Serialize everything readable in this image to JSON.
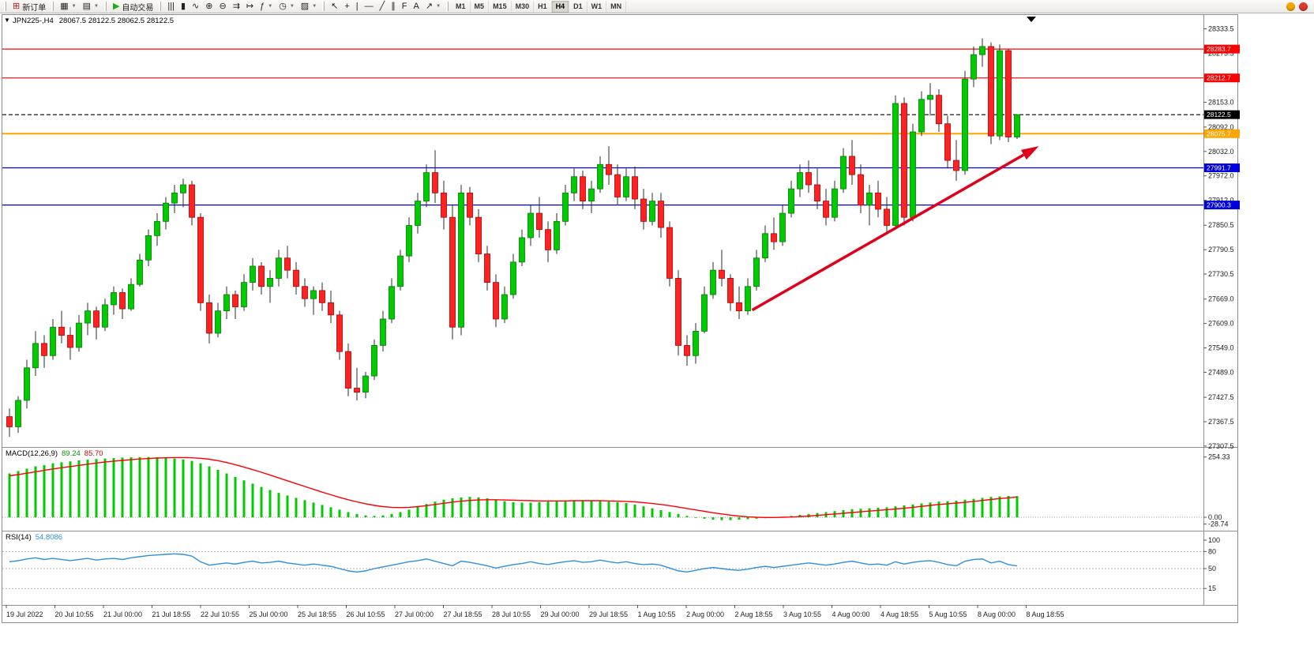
{
  "toolbar": {
    "groups": [
      {
        "items": [
          {
            "name": "new-order-button",
            "glyph": "⊞",
            "glyph_color": "#b01e1e",
            "label": "新订单"
          }
        ]
      },
      {
        "items": [
          {
            "name": "new-chart-button",
            "glyph": "▦",
            "caret": true
          },
          {
            "name": "profiles-button",
            "glyph": "▤",
            "caret": true
          }
        ]
      },
      {
        "items": [
          {
            "name": "autotrade-button",
            "glyph": "▶",
            "glyph_color": "#1faa1f",
            "label": "自动交易"
          }
        ]
      },
      {
        "items": [
          {
            "name": "bars-chart-button",
            "glyph": "|||"
          },
          {
            "name": "candlestick-chart-button",
            "glyph": "▮"
          },
          {
            "name": "line-chart-button",
            "glyph": "∿"
          },
          {
            "name": "zoom-in-button",
            "glyph": "⊕"
          },
          {
            "name": "zoom-out-button",
            "glyph": "⊖"
          },
          {
            "name": "auto-scroll-button",
            "glyph": "⇉"
          },
          {
            "name": "chart-shift-button",
            "glyph": "↦"
          },
          {
            "name": "indicators-button",
            "glyph": "ƒ",
            "caret": true
          },
          {
            "name": "periods-button",
            "glyph": "◷",
            "caret": true
          },
          {
            "name": "templates-button",
            "glyph": "▨",
            "caret": true
          }
        ]
      },
      {
        "items": [
          {
            "name": "cursor-tool-button",
            "glyph": "↖"
          },
          {
            "name": "crosshair-tool-button",
            "glyph": "+"
          },
          {
            "name": "vertical-line-tool-button",
            "glyph": "|"
          },
          {
            "name": "horizontal-line-tool-button",
            "glyph": "—"
          },
          {
            "name": "trendline-tool-button",
            "glyph": "╱"
          },
          {
            "name": "channel-tool-button",
            "glyph": "∥"
          },
          {
            "name": "fibonacci-tool-button",
            "glyph": "F"
          },
          {
            "name": "text-tool-button",
            "glyph": "A"
          },
          {
            "name": "arrows-tool-button",
            "glyph": "↗",
            "caret": true
          }
        ]
      }
    ],
    "timeframes": [
      "M1",
      "M5",
      "M15",
      "M30",
      "H1",
      "H4",
      "D1",
      "W1",
      "MN"
    ],
    "active_timeframe": "H4",
    "right_icons": [
      {
        "name": "community-icon",
        "color": "#f7a600"
      },
      {
        "name": "alerts-icon",
        "color": "#e0392e"
      }
    ]
  },
  "chart": {
    "one_click_glyph": "▼",
    "title": "JPN225-,H4",
    "ohlc_text": "28067.5 28122.5 28062.5 28122.5"
  },
  "chart_data": {
    "type": "candlestick",
    "symbol": "JPN225-",
    "period": "H4",
    "current_bar": {
      "open": 28067.5,
      "high": 28122.5,
      "low": 28062.5,
      "close": 28122.5
    },
    "up_color": "#00cb00",
    "down_color": "#ff2222",
    "y_axis_ticks": [
      "28333.5",
      "28273.5",
      "28153.0",
      "28092.0",
      "28032.0",
      "27972.0",
      "27912.0",
      "27850.5",
      "27790.5",
      "27730.5",
      "27669.0",
      "27609.0",
      "27549.0",
      "27489.0",
      "27427.5",
      "27367.5",
      "27307.5"
    ],
    "levels": [
      {
        "price": 28283.7,
        "label": "28283.7",
        "color": "#ff0000",
        "style": "solid",
        "role": "resistance"
      },
      {
        "price": 28212.7,
        "label": "28212.7",
        "color": "#ff0000",
        "style": "solid",
        "role": "resistance"
      },
      {
        "price": 28122.5,
        "label": "28122.5",
        "color": "#000000",
        "style": "dash",
        "role": "current-price"
      },
      {
        "price": 28075.7,
        "label": "28075.7",
        "color": "#ffa500",
        "style": "solid",
        "role": "pivot"
      },
      {
        "price": 27991.7,
        "label": "27991.7",
        "color": "#0000dd",
        "style": "solid",
        "role": "support"
      },
      {
        "price": 27900.3,
        "label": "27900.3",
        "color": "#0000dd",
        "style": "solid",
        "role": "support"
      }
    ],
    "x_labels": [
      "19 Jul 2022",
      "20 Jul 10:55",
      "21 Jul 00:00",
      "21 Jul 18:55",
      "22 Jul 10:55",
      "25 Jul 00:00",
      "25 Jul 18:55",
      "26 Jul 10:55",
      "27 Jul 00:00",
      "27 Jul 18:55",
      "28 Jul 10:55",
      "29 Jul 00:00",
      "29 Jul 18:55",
      "1 Aug 10:55",
      "2 Aug 00:00",
      "2 Aug 18:55",
      "3 Aug 10:55",
      "4 Aug 00:00",
      "4 Aug 18:55",
      "5 Aug 10:55",
      "8 Aug 00:00",
      "8 Aug 18:55"
    ],
    "candles": [
      [
        27380,
        27400,
        27330,
        27355
      ],
      [
        27355,
        27430,
        27340,
        27420
      ],
      [
        27420,
        27520,
        27400,
        27500
      ],
      [
        27500,
        27590,
        27480,
        27560
      ],
      [
        27560,
        27580,
        27500,
        27530
      ],
      [
        27530,
        27620,
        27520,
        27600
      ],
      [
        27600,
        27640,
        27560,
        27580
      ],
      [
        27580,
        27600,
        27520,
        27550
      ],
      [
        27550,
        27630,
        27540,
        27610
      ],
      [
        27610,
        27660,
        27580,
        27640
      ],
      [
        27640,
        27650,
        27570,
        27600
      ],
      [
        27600,
        27670,
        27590,
        27655
      ],
      [
        27655,
        27700,
        27630,
        27685
      ],
      [
        27685,
        27695,
        27620,
        27645
      ],
      [
        27645,
        27720,
        27640,
        27705
      ],
      [
        27705,
        27780,
        27700,
        27765
      ],
      [
        27765,
        27840,
        27750,
        27825
      ],
      [
        27825,
        27880,
        27800,
        27860
      ],
      [
        27860,
        27920,
        27840,
        27905
      ],
      [
        27905,
        27950,
        27880,
        27930
      ],
      [
        27930,
        27965,
        27895,
        27950
      ],
      [
        27950,
        27960,
        27850,
        27870
      ],
      [
        27870,
        27880,
        27640,
        27660
      ],
      [
        27660,
        27680,
        27560,
        27585
      ],
      [
        27585,
        27660,
        27575,
        27640
      ],
      [
        27640,
        27700,
        27620,
        27680
      ],
      [
        27680,
        27690,
        27620,
        27650
      ],
      [
        27650,
        27730,
        27640,
        27710
      ],
      [
        27710,
        27770,
        27690,
        27750
      ],
      [
        27750,
        27760,
        27680,
        27700
      ],
      [
        27700,
        27740,
        27660,
        27720
      ],
      [
        27720,
        27790,
        27700,
        27770
      ],
      [
        27770,
        27800,
        27720,
        27740
      ],
      [
        27740,
        27760,
        27680,
        27700
      ],
      [
        27700,
        27720,
        27650,
        27670
      ],
      [
        27670,
        27700,
        27630,
        27690
      ],
      [
        27690,
        27710,
        27640,
        27660
      ],
      [
        27660,
        27690,
        27610,
        27630
      ],
      [
        27630,
        27640,
        27520,
        27540
      ],
      [
        27540,
        27560,
        27430,
        27450
      ],
      [
        27450,
        27500,
        27420,
        27440
      ],
      [
        27440,
        27490,
        27425,
        27480
      ],
      [
        27480,
        27570,
        27470,
        27555
      ],
      [
        27555,
        27640,
        27540,
        27620
      ],
      [
        27620,
        27720,
        27610,
        27700
      ],
      [
        27700,
        27790,
        27690,
        27775
      ],
      [
        27775,
        27870,
        27760,
        27850
      ],
      [
        27850,
        27930,
        27830,
        27910
      ],
      [
        27910,
        28000,
        27895,
        27980
      ],
      [
        27980,
        28035,
        27905,
        27930
      ],
      [
        27930,
        27960,
        27840,
        27870
      ],
      [
        27870,
        27900,
        27570,
        27600
      ],
      [
        27600,
        27950,
        27580,
        27930
      ],
      [
        27930,
        27945,
        27850,
        27870
      ],
      [
        27870,
        27890,
        27760,
        27780
      ],
      [
        27780,
        27800,
        27690,
        27710
      ],
      [
        27710,
        27730,
        27600,
        27620
      ],
      [
        27620,
        27700,
        27610,
        27680
      ],
      [
        27680,
        27780,
        27670,
        27760
      ],
      [
        27760,
        27840,
        27750,
        27820
      ],
      [
        27820,
        27900,
        27800,
        27880
      ],
      [
        27880,
        27920,
        27820,
        27840
      ],
      [
        27840,
        27860,
        27760,
        27790
      ],
      [
        27790,
        27880,
        27780,
        27860
      ],
      [
        27860,
        27950,
        27850,
        27930
      ],
      [
        27930,
        27990,
        27910,
        27970
      ],
      [
        27970,
        27985,
        27890,
        27910
      ],
      [
        27910,
        27960,
        27880,
        27940
      ],
      [
        27940,
        28020,
        27930,
        28000
      ],
      [
        28000,
        28045,
        27950,
        27975
      ],
      [
        27975,
        28000,
        27900,
        27920
      ],
      [
        27920,
        27990,
        27910,
        27970
      ],
      [
        27970,
        27995,
        27890,
        27915
      ],
      [
        27915,
        27940,
        27840,
        27860
      ],
      [
        27860,
        27930,
        27850,
        27910
      ],
      [
        27910,
        27930,
        27820,
        27845
      ],
      [
        27845,
        27860,
        27700,
        27720
      ],
      [
        27720,
        27740,
        27530,
        27555
      ],
      [
        27555,
        27580,
        27505,
        27530
      ],
      [
        27530,
        27610,
        27510,
        27590
      ],
      [
        27590,
        27700,
        27585,
        27680
      ],
      [
        27680,
        27760,
        27670,
        27740
      ],
      [
        27740,
        27790,
        27700,
        27720
      ],
      [
        27720,
        27730,
        27640,
        27660
      ],
      [
        27660,
        27700,
        27620,
        27640
      ],
      [
        27640,
        27720,
        27630,
        27700
      ],
      [
        27700,
        27790,
        27690,
        27770
      ],
      [
        27770,
        27850,
        27760,
        27830
      ],
      [
        27830,
        27870,
        27790,
        27810
      ],
      [
        27810,
        27900,
        27800,
        27880
      ],
      [
        27880,
        27960,
        27870,
        27940
      ],
      [
        27940,
        28000,
        27920,
        27980
      ],
      [
        27980,
        28010,
        27930,
        27950
      ],
      [
        27950,
        27990,
        27890,
        27910
      ],
      [
        27910,
        27940,
        27850,
        27870
      ],
      [
        27870,
        27960,
        27860,
        27940
      ],
      [
        27940,
        28040,
        27930,
        28020
      ],
      [
        28020,
        28060,
        27950,
        27975
      ],
      [
        27975,
        28000,
        27880,
        27900
      ],
      [
        27900,
        27950,
        27850,
        27930
      ],
      [
        27930,
        27960,
        27870,
        27890
      ],
      [
        27890,
        27920,
        27830,
        27850
      ],
      [
        27850,
        28170,
        27840,
        28150
      ],
      [
        28150,
        28165,
        27850,
        27870
      ],
      [
        27870,
        28100,
        27860,
        28080
      ],
      [
        28080,
        28180,
        28070,
        28160
      ],
      [
        28160,
        28200,
        28120,
        28170
      ],
      [
        28170,
        28185,
        28080,
        28100
      ],
      [
        28100,
        28120,
        27990,
        28010
      ],
      [
        28010,
        28060,
        27960,
        27985
      ],
      [
        27985,
        28230,
        27975,
        28210
      ],
      [
        28210,
        28290,
        28190,
        28270
      ],
      [
        28270,
        28310,
        28240,
        28290
      ],
      [
        28290,
        28300,
        28050,
        28070
      ],
      [
        28070,
        28295,
        28060,
        28280
      ],
      [
        28280,
        28285,
        28055,
        28067.5
      ],
      [
        28067.5,
        28122.5,
        28062.5,
        28122.5
      ]
    ],
    "macd": {
      "label": "MACD(12,26,9)",
      "value": "89.24",
      "signal": "85.70",
      "axis_labels": [
        "254.33",
        "0.00",
        "-28.74"
      ],
      "hist_color": "#00cb00",
      "line_color": "#ff0000",
      "histogram": [
        185,
        195,
        205,
        215,
        220,
        228,
        232,
        236,
        240,
        243,
        246,
        248,
        250,
        252,
        253,
        254,
        254,
        253,
        251,
        248,
        244,
        238,
        228,
        215,
        200,
        185,
        170,
        156,
        142,
        128,
        115,
        103,
        92,
        82,
        72,
        62,
        52,
        42,
        32,
        22,
        14,
        8,
        6,
        8,
        14,
        22,
        32,
        44,
        56,
        66,
        74,
        80,
        84,
        86,
        84,
        80,
        74,
        68,
        64,
        62,
        62,
        64,
        66,
        68,
        70,
        72,
        72,
        70,
        68,
        66,
        64,
        60,
        54,
        46,
        38,
        30,
        22,
        14,
        6,
        0,
        -6,
        -10,
        -12,
        -12,
        -10,
        -8,
        -6,
        -4,
        -2,
        2,
        6,
        10,
        14,
        18,
        22,
        26,
        30,
        34,
        36,
        38,
        40,
        42,
        46,
        50,
        54,
        58,
        62,
        66,
        68,
        70,
        74,
        78,
        82,
        86,
        88,
        90,
        89.2
      ],
      "signal_line": [
        175,
        180,
        186,
        192,
        198,
        204,
        209,
        214,
        219,
        224,
        229,
        233,
        237,
        240,
        243,
        246,
        248,
        250,
        251,
        252,
        252,
        251,
        249,
        245,
        239,
        231,
        222,
        212,
        201,
        190,
        178,
        166,
        154,
        142,
        130,
        118,
        106,
        95,
        84,
        74,
        65,
        57,
        50,
        45,
        42,
        41,
        42,
        45,
        49,
        54,
        59,
        64,
        68,
        71,
        73,
        74,
        74,
        73,
        72,
        71,
        70,
        69,
        69,
        69,
        69,
        70,
        70,
        70,
        70,
        69,
        68,
        67,
        65,
        62,
        58,
        54,
        49,
        43,
        37,
        31,
        25,
        19,
        14,
        9,
        5,
        2,
        0,
        -1,
        -1,
        0,
        1,
        3,
        5,
        8,
        11,
        14,
        17,
        20,
        23,
        26,
        29,
        32,
        35,
        38,
        42,
        46,
        50,
        54,
        57,
        60,
        63,
        67,
        71,
        75,
        79,
        82,
        85.7
      ]
    },
    "rsi": {
      "label": "RSI(14)",
      "value": "54.8086",
      "color": "#2f8fde",
      "axis_labels": [
        "100",
        "80",
        "50",
        "15"
      ],
      "level_lines": [
        80,
        50,
        15
      ],
      "values": [
        62,
        64,
        67,
        69,
        66,
        68,
        66,
        64,
        66,
        68,
        65,
        67,
        68,
        66,
        69,
        71,
        73,
        74,
        75,
        76,
        75,
        72,
        62,
        56,
        58,
        60,
        58,
        61,
        63,
        60,
        61,
        63,
        60,
        58,
        56,
        58,
        56,
        54,
        50,
        46,
        44,
        46,
        50,
        53,
        56,
        59,
        62,
        64,
        67,
        63,
        59,
        55,
        63,
        61,
        58,
        55,
        51,
        54,
        57,
        59,
        62,
        59,
        57,
        60,
        62,
        64,
        61,
        62,
        65,
        62,
        60,
        62,
        59,
        57,
        58,
        56,
        51,
        46,
        44,
        47,
        50,
        52,
        50,
        48,
        47,
        49,
        52,
        54,
        52,
        54,
        56,
        58,
        60,
        58,
        56,
        58,
        61,
        63,
        60,
        57,
        58,
        56,
        62,
        58,
        61,
        63,
        64,
        61,
        57,
        55,
        63,
        66,
        67,
        60,
        63,
        57,
        54.81
      ]
    },
    "trend_arrow": {
      "from_bar": 85.5,
      "from_price": 27642,
      "to_bar": 118.5,
      "to_price": 28045,
      "color": "#e0001b"
    }
  }
}
